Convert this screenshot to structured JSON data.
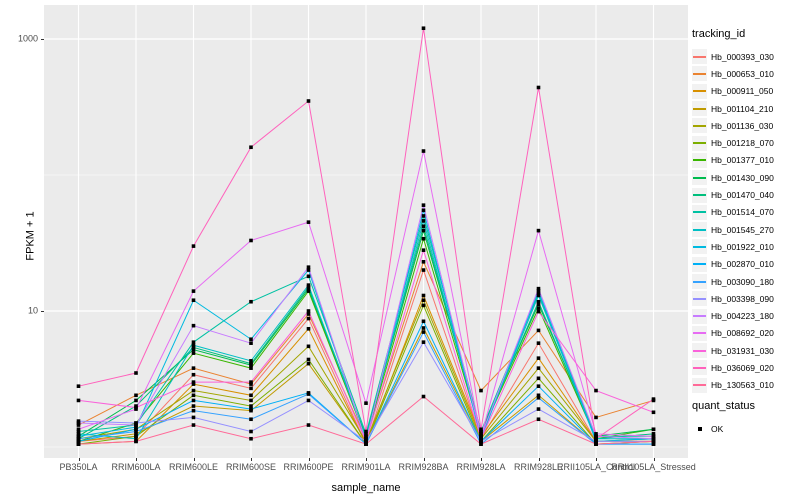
{
  "axes": {
    "x_title": "sample_name",
    "y_title": "FPKM + 1",
    "y_tick_labels": [
      "1000",
      "10"
    ],
    "y_tick_values": [
      1000,
      10
    ]
  },
  "legend": {
    "tracking_title": "tracking_id",
    "quant_title": "quant_status",
    "quant_items": [
      {
        "label": "OK",
        "marker": "black-square"
      }
    ]
  },
  "style": {
    "panel_bg": "#EBEBEB",
    "grid_major": "#FFFFFF",
    "grid_minor": "#F5F5F5",
    "point_color": "#000000",
    "tick_text": "#4D4D4D"
  },
  "chart_data": {
    "type": "line",
    "title": "",
    "xlabel": "sample_name",
    "ylabel": "FPKM + 1",
    "y_scale": "log10",
    "y_major_breaks": [
      10,
      1000
    ],
    "y_minor_breaks": [
      1,
      100
    ],
    "ylim": [
      0.85,
      1500
    ],
    "grid": true,
    "legend_position": "right",
    "categories": [
      "PB350LA",
      "RRIM600LA",
      "RRIM600LE",
      "RRIM600SE",
      "RRIM600PE",
      "RRIM901LA",
      "RRIM928BA",
      "RRIM928LA",
      "RRIM928LE",
      "RRII105LA_Control",
      "RRII105LA_Stressed"
    ],
    "series": [
      {
        "name": "Hb_000393_030",
        "color": "#F8766D",
        "values": [
          1.1,
          1.2,
          3.4,
          2.7,
          8.8,
          1.05,
          20,
          1.15,
          5.8,
          1.1,
          1.1
        ]
      },
      {
        "name": "Hb_000653_010",
        "color": "#EA8331",
        "values": [
          1.45,
          2.4,
          3.8,
          2.9,
          9.5,
          1.15,
          23,
          2.6,
          7.2,
          1.65,
          2.2
        ]
      },
      {
        "name": "Hb_000911_050",
        "color": "#D89000",
        "values": [
          1.05,
          1.1,
          2.9,
          2.4,
          7.4,
          1.05,
          13,
          1.2,
          4.5,
          1.1,
          1.15
        ]
      },
      {
        "name": "Hb_001104_210",
        "color": "#C09B00",
        "values": [
          1.1,
          1.25,
          2.0,
          1.85,
          4.1,
          1.05,
          7.5,
          1.1,
          2.4,
          1.05,
          1.1
        ]
      },
      {
        "name": "Hb_001136_030",
        "color": "#A3A500",
        "values": [
          1.15,
          1.35,
          2.6,
          2.2,
          5.5,
          1.1,
          12,
          1.15,
          3.8,
          1.1,
          1.1
        ]
      },
      {
        "name": "Hb_001218_070",
        "color": "#7CAE00",
        "values": [
          1.05,
          1.2,
          2.4,
          2.0,
          4.4,
          1.05,
          11,
          1.1,
          3.2,
          1.05,
          1.1
        ]
      },
      {
        "name": "Hb_001377_010",
        "color": "#39B600",
        "values": [
          1.1,
          1.5,
          4.9,
          3.8,
          14,
          1.15,
          34,
          1.25,
          10.5,
          1.15,
          1.35
        ]
      },
      {
        "name": "Hb_001430_090",
        "color": "#00BB4E",
        "values": [
          1.2,
          2.2,
          5.2,
          4.0,
          14.5,
          1.2,
          39,
          1.3,
          11.2,
          1.2,
          1.35
        ]
      },
      {
        "name": "Hb_001470_040",
        "color": "#00BF7D",
        "values": [
          1.15,
          2.0,
          5.4,
          4.1,
          15,
          1.2,
          42,
          1.25,
          11.7,
          1.15,
          1.25
        ]
      },
      {
        "name": "Hb_001514_070",
        "color": "#00C1A3",
        "values": [
          1.3,
          1.45,
          5.9,
          11.7,
          18,
          1.25,
          50,
          1.3,
          13.5,
          1.2,
          1.2
        ]
      },
      {
        "name": "Hb_001545_270",
        "color": "#00BFC4",
        "values": [
          1.25,
          1.15,
          5.6,
          4.3,
          15.5,
          1.15,
          46,
          1.2,
          13,
          1.15,
          1.15
        ]
      },
      {
        "name": "Hb_001922_010",
        "color": "#00BAE0",
        "values": [
          1.2,
          1.4,
          12,
          6.2,
          20,
          1.1,
          55,
          1.15,
          14.1,
          1.1,
          1.15
        ]
      },
      {
        "name": "Hb_002870_010",
        "color": "#00B0F6",
        "values": [
          1.1,
          1.35,
          2.2,
          1.9,
          2.5,
          1.05,
          8.4,
          1.1,
          2.8,
          1.05,
          1.05
        ]
      },
      {
        "name": "Hb_003090_180",
        "color": "#35A2FF",
        "values": [
          1.15,
          1.3,
          1.85,
          1.6,
          2.45,
          1.05,
          7.0,
          1.05,
          2.3,
          1.05,
          1.05
        ]
      },
      {
        "name": "Hb_003398_090",
        "color": "#9590FF",
        "values": [
          1.55,
          1.5,
          1.65,
          1.3,
          2.2,
          1.1,
          5.9,
          1.1,
          1.9,
          1.1,
          1.1
        ]
      },
      {
        "name": "Hb_004223_180",
        "color": "#C77CFF",
        "values": [
          1.5,
          1.45,
          7.8,
          5.8,
          21,
          1.1,
          60,
          1.2,
          14.6,
          1.2,
          1.15
        ]
      },
      {
        "name": "Hb_008692_020",
        "color": "#E76BF3",
        "values": [
          1.35,
          1.9,
          14,
          33,
          45,
          2.1,
          150,
          1.2,
          39,
          1.25,
          1.2
        ]
      },
      {
        "name": "Hb_031931_030",
        "color": "#FA62DB",
        "values": [
          2.2,
          1.95,
          3.0,
          3.0,
          10,
          1.1,
          28,
          1.15,
          9.9,
          2.6,
          1.8
        ]
      },
      {
        "name": "Hb_036069_020",
        "color": "#FF62BC",
        "values": [
          2.8,
          3.5,
          30,
          160,
          350,
          1.3,
          1200,
          1.35,
          440,
          1.15,
          2.25
        ]
      },
      {
        "name": "Hb_130563_010",
        "color": "#FF6A98",
        "values": [
          1.05,
          1.1,
          1.45,
          1.15,
          1.45,
          1.05,
          2.35,
          1.05,
          1.6,
          1.05,
          1.1
        ]
      }
    ]
  }
}
